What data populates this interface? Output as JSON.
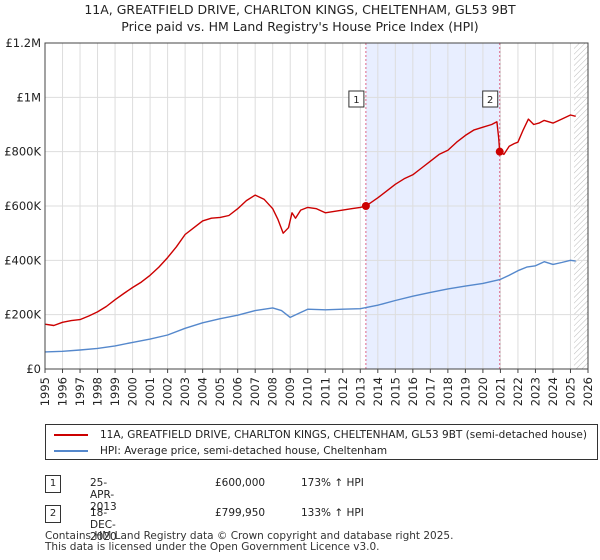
{
  "title_line1": "11A, GREATFIELD DRIVE, CHARLTON KINGS, CHELTENHAM, GL53 9BT",
  "title_line2": "Price paid vs. HM Land Registry's House Price Index (HPI)",
  "colors": {
    "property": "#cc0000",
    "hpi": "#5588cc",
    "shade": "#e8eeff",
    "grid": "#dddddd",
    "hatch": "#bbbbbb",
    "marker_line": "#dd6688"
  },
  "chart_data": {
    "type": "line",
    "title": "Price paid vs. HM Land Registry's House Price Index (HPI)",
    "xlim": [
      1995,
      2026
    ],
    "ylim": [
      0,
      1200000
    ],
    "x_ticks": [
      1995,
      1996,
      1997,
      1998,
      1999,
      2000,
      2001,
      2002,
      2003,
      2004,
      2005,
      2006,
      2007,
      2008,
      2009,
      2010,
      2011,
      2012,
      2013,
      2014,
      2015,
      2016,
      2017,
      2018,
      2019,
      2020,
      2021,
      2022,
      2023,
      2024,
      2025,
      2026
    ],
    "y_ticks": [
      {
        "value": 0,
        "label": "£0"
      },
      {
        "value": 200000,
        "label": "£200K"
      },
      {
        "value": 400000,
        "label": "£400K"
      },
      {
        "value": 600000,
        "label": "£600K"
      },
      {
        "value": 800000,
        "label": "£800K"
      },
      {
        "value": 1000000,
        "label": "£1M"
      },
      {
        "value": 1200000,
        "label": "£1.2M"
      }
    ],
    "shaded_region": [
      2013.32,
      2020.96
    ],
    "hatched_from": 2025.2,
    "series": [
      {
        "name": "11A, GREATFIELD DRIVE, CHARLTON KINGS, CHELTENHAM, GL53 9BT (semi-detached house)",
        "color": "#cc0000",
        "x": [
          1995,
          1995.5,
          1996,
          1996.5,
          1997,
          1997.5,
          1998,
          1998.5,
          1999,
          1999.5,
          2000,
          2000.5,
          2001,
          2001.5,
          2002,
          2002.5,
          2003,
          2003.5,
          2004,
          2004.5,
          2005,
          2005.5,
          2006,
          2006.5,
          2007,
          2007.5,
          2008,
          2008.3,
          2008.6,
          2008.9,
          2009.1,
          2009.3,
          2009.6,
          2010,
          2010.5,
          2011,
          2011.5,
          2012,
          2012.5,
          2013,
          2013.32,
          2013.6,
          2014,
          2014.5,
          2015,
          2015.5,
          2016,
          2016.5,
          2017,
          2017.5,
          2018,
          2018.5,
          2019,
          2019.5,
          2020,
          2020.5,
          2020.8,
          2020.9,
          2020.96,
          2021.2,
          2021.5,
          2021.8,
          2022,
          2022.3,
          2022.6,
          2022.9,
          2023.2,
          2023.5,
          2024,
          2024.5,
          2025,
          2025.3
        ],
        "y": [
          165000,
          160000,
          172000,
          178000,
          182000,
          195000,
          210000,
          230000,
          255000,
          278000,
          300000,
          320000,
          345000,
          375000,
          410000,
          450000,
          495000,
          520000,
          545000,
          555000,
          558000,
          565000,
          590000,
          620000,
          640000,
          625000,
          590000,
          550000,
          500000,
          520000,
          575000,
          555000,
          585000,
          595000,
          590000,
          575000,
          580000,
          585000,
          590000,
          595000,
          600000,
          612000,
          630000,
          655000,
          680000,
          700000,
          715000,
          740000,
          765000,
          790000,
          805000,
          835000,
          860000,
          880000,
          890000,
          900000,
          910000,
          850000,
          799950,
          790000,
          820000,
          830000,
          835000,
          880000,
          920000,
          900000,
          905000,
          915000,
          905000,
          920000,
          935000,
          930000
        ]
      },
      {
        "name": "HPI: Average price, semi-detached house, Cheltenham",
        "color": "#5588cc",
        "x": [
          1995,
          1996,
          1997,
          1998,
          1999,
          2000,
          2001,
          2002,
          2003,
          2004,
          2005,
          2006,
          2007,
          2008,
          2008.5,
          2009,
          2009.5,
          2010,
          2011,
          2012,
          2013,
          2014,
          2015,
          2016,
          2017,
          2018,
          2019,
          2020,
          2021,
          2021.5,
          2022,
          2022.5,
          2023,
          2023.5,
          2024,
          2024.5,
          2025,
          2025.3
        ],
        "y": [
          63000,
          65000,
          70000,
          76000,
          85000,
          98000,
          110000,
          125000,
          150000,
          170000,
          185000,
          198000,
          215000,
          225000,
          215000,
          190000,
          205000,
          220000,
          218000,
          220000,
          222000,
          235000,
          252000,
          268000,
          282000,
          295000,
          305000,
          315000,
          330000,
          345000,
          362000,
          375000,
          380000,
          395000,
          385000,
          392000,
          400000,
          397000
        ]
      }
    ],
    "sale_markers": [
      {
        "id": "1",
        "x": 2013.32,
        "y": 600000
      },
      {
        "id": "2",
        "x": 2020.96,
        "y": 799950
      }
    ]
  },
  "legend": {
    "property_label": "11A, GREATFIELD DRIVE, CHARLTON KINGS, CHELTENHAM, GL53 9BT (semi-detached house)",
    "hpi_label": "HPI: Average price, semi-detached house, Cheltenham"
  },
  "sales": [
    {
      "num": "1",
      "date": "25-APR-2013",
      "price": "£600,000",
      "hpi": "173% ↑ HPI"
    },
    {
      "num": "2",
      "date": "18-DEC-2020",
      "price": "£799,950",
      "hpi": "133% ↑ HPI"
    }
  ],
  "footer": {
    "line1": "Contains HM Land Registry data © Crown copyright and database right 2025.",
    "line2": "This data is licensed under the Open Government Licence v3.0."
  }
}
